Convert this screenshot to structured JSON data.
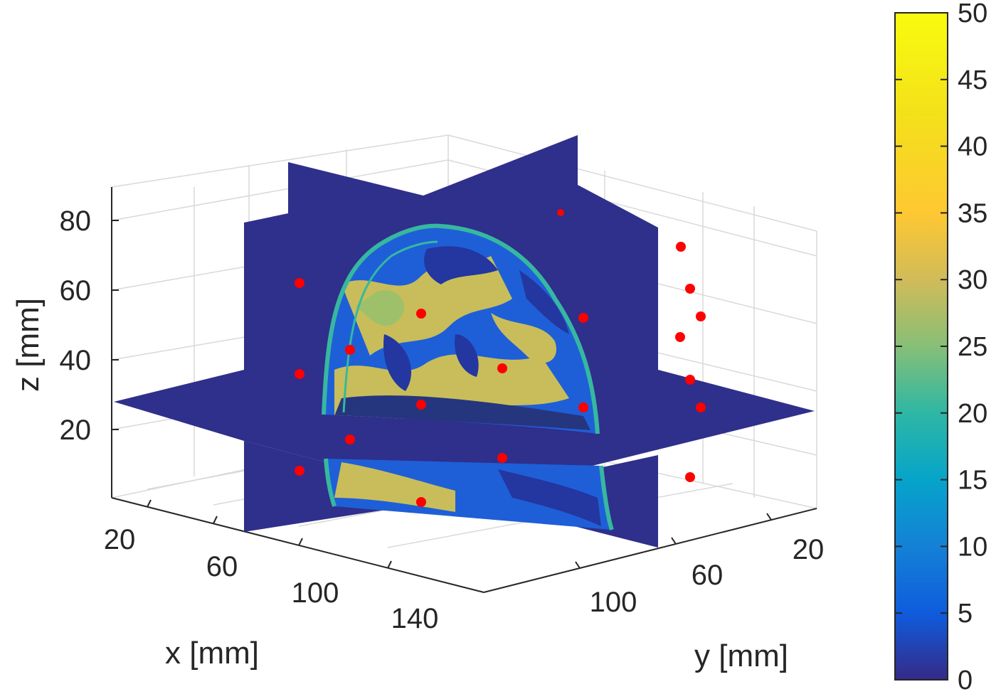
{
  "chart_data": {
    "type": "volume-slice",
    "axes": {
      "x": {
        "label": "x [mm]",
        "ticks": [
          20,
          60,
          100,
          140
        ],
        "range": [
          0,
          160
        ]
      },
      "y": {
        "label": "y [mm]",
        "ticks": [
          20,
          60,
          100
        ],
        "range": [
          0,
          140
        ]
      },
      "z": {
        "label": "z [mm]",
        "ticks": [
          20,
          40,
          60,
          80
        ],
        "range": [
          0,
          90
        ]
      },
      "grid": true,
      "box": true
    },
    "slices": [
      {
        "orientation": "yz-plane",
        "at": "x mid"
      },
      {
        "orientation": "xz-plane",
        "at": "y mid"
      },
      {
        "orientation": "xy-plane",
        "at": "z ≈ 28"
      }
    ],
    "markers": {
      "color": "#ff0000",
      "shape": "filled-circle",
      "count": 22
    },
    "colorbar": {
      "colormap": "parula",
      "range": [
        0,
        50
      ],
      "ticks": [
        "0",
        "5",
        "10",
        "15",
        "20",
        "25",
        "30",
        "35",
        "40",
        "45",
        "50"
      ],
      "location": "right"
    },
    "colors": {
      "slice_background": "#2f2f8c",
      "structure_outline": "#36b8a0",
      "tissue_high": "#c8bd5a",
      "tissue_low": "#1e5fd8"
    }
  }
}
